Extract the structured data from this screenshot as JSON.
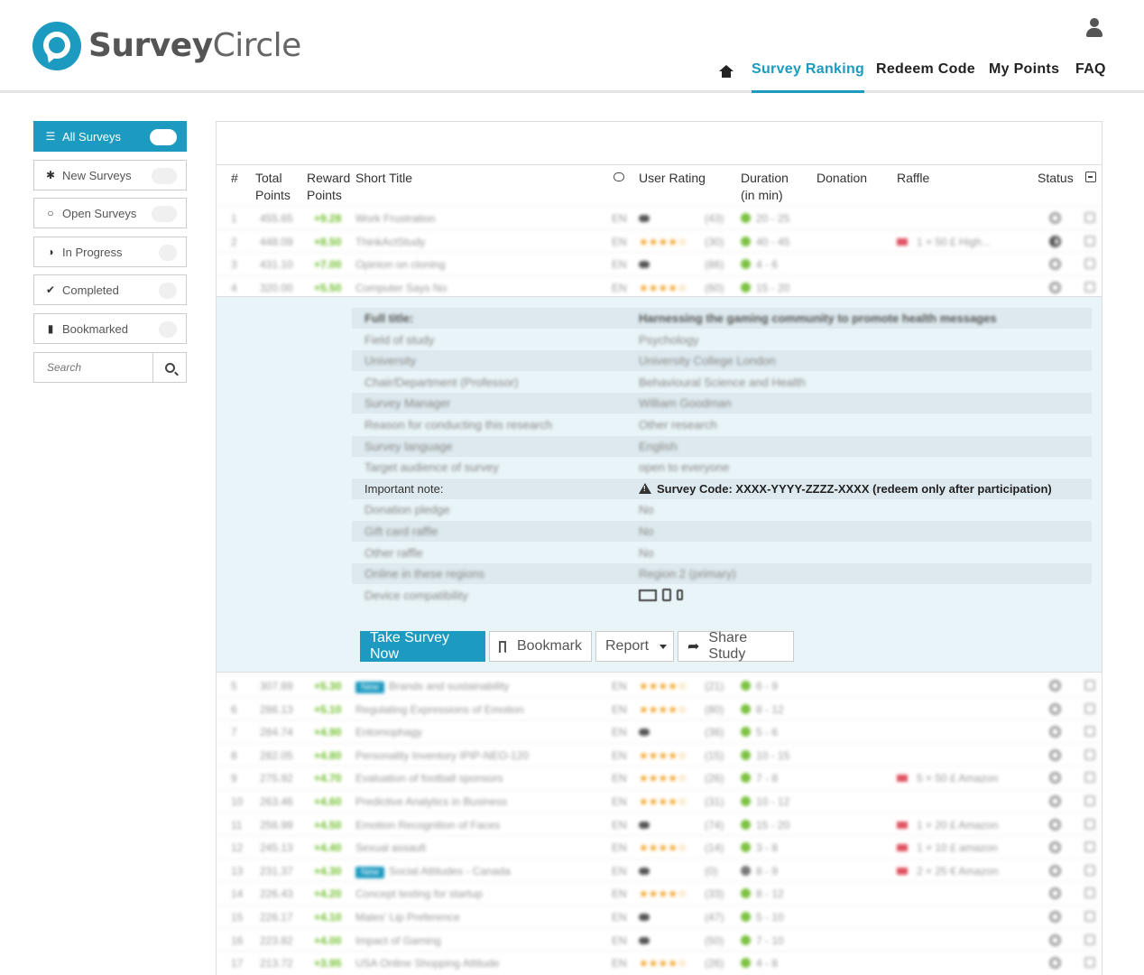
{
  "brand": {
    "name_bold": "Survey",
    "name_light": "Circle"
  },
  "nav": {
    "home_icon": "home-icon",
    "items": [
      "Survey Ranking",
      "Redeem Code",
      "My Points",
      "FAQ"
    ],
    "active": "Survey Ranking"
  },
  "sidebar": {
    "items": [
      {
        "icon": "list-icon",
        "label": "All Surveys"
      },
      {
        "icon": "asterisk-icon",
        "label": "New Surveys"
      },
      {
        "icon": "circle-icon",
        "label": "Open Surveys"
      },
      {
        "icon": "half-circle-icon",
        "label": "In Progress"
      },
      {
        "icon": "check-icon",
        "label": "Completed"
      },
      {
        "icon": "bookmark-icon",
        "label": "Bookmarked"
      }
    ],
    "search_placeholder": "Search"
  },
  "table": {
    "headers": {
      "num": "#",
      "total": "Total",
      "total2": "Points",
      "reward": "Reward",
      "reward2": "Points",
      "title": "Short Title",
      "rating": "User Rating",
      "duration": "Duration",
      "duration2": "(in min)",
      "donation": "Donation",
      "raffle": "Raffle",
      "status": "Status"
    },
    "rows_top": [
      {
        "n": "1",
        "total": "455.65",
        "reward": "+9.28",
        "title": "Work Frustration",
        "lang": "EN",
        "stars": "",
        "count": "(43)",
        "dur": "20 - 25",
        "raffle": "",
        "status": "open"
      },
      {
        "n": "2",
        "total": "448.09",
        "reward": "+8.50",
        "title": "ThinkActStudy",
        "lang": "EN",
        "stars": "★★★★☆",
        "count": "(30)",
        "dur": "40 - 45",
        "raffle": "1 × 50 £ High...",
        "status": "half"
      },
      {
        "n": "3",
        "total": "431.10",
        "reward": "+7.00",
        "title": "Opinion on cloning",
        "lang": "EN",
        "stars": "",
        "count": "(86)",
        "dur": "4 - 6",
        "raffle": "",
        "status": "open"
      },
      {
        "n": "4",
        "total": "320.00",
        "reward": "+5.50",
        "title": "Computer Says No",
        "lang": "EN",
        "stars": "★★★★☆",
        "count": "(60)",
        "dur": "15 - 20",
        "raffle": "",
        "status": "open"
      }
    ],
    "rows_bottom": [
      {
        "n": "5",
        "total": "307.89",
        "reward": "+5.30",
        "badge": "New",
        "title": "Brands and sustainability",
        "lang": "EN",
        "stars": "★★★★☆",
        "count": "(21)",
        "dur": "6 - 9",
        "raffle": ""
      },
      {
        "n": "6",
        "total": "286.13",
        "reward": "+5.10",
        "badge": "",
        "title": "Regulating Expressions of Emotion",
        "lang": "EN",
        "stars": "★★★★☆",
        "count": "(80)",
        "dur": "8 - 12",
        "raffle": ""
      },
      {
        "n": "7",
        "total": "284.74",
        "reward": "+4.90",
        "badge": "",
        "title": "Entomophagy",
        "lang": "EN",
        "stars": "",
        "count": "(36)",
        "dur": "5 - 6",
        "raffle": ""
      },
      {
        "n": "8",
        "total": "282.05",
        "reward": "+4.80",
        "badge": "",
        "title": "Personality Inventory IPIP-NEO-120",
        "lang": "EN",
        "stars": "★★★★☆",
        "count": "(15)",
        "dur": "10 - 15",
        "raffle": ""
      },
      {
        "n": "9",
        "total": "275.92",
        "reward": "+4.70",
        "badge": "",
        "title": "Evaluation of football sponsors",
        "lang": "EN",
        "stars": "★★★★☆",
        "count": "(26)",
        "dur": "7 - 8",
        "raffle": "5 × 50 £ Amazon"
      },
      {
        "n": "10",
        "total": "263.46",
        "reward": "+4.60",
        "badge": "",
        "title": "Predictive Analytics in Business",
        "lang": "EN",
        "stars": "★★★★☆",
        "count": "(31)",
        "dur": "10 - 12",
        "raffle": ""
      },
      {
        "n": "11",
        "total": "256.99",
        "reward": "+4.50",
        "badge": "",
        "title": "Emotion Recognition of Faces",
        "lang": "EN",
        "stars": "",
        "count": "(74)",
        "dur": "15 - 20",
        "raffle": "1 × 20 £ Amazon"
      },
      {
        "n": "12",
        "total": "245.13",
        "reward": "+4.40",
        "badge": "",
        "title": "Sexual assault",
        "lang": "EN",
        "stars": "★★★★☆",
        "count": "(14)",
        "dur": "3 - 8",
        "raffle": "1 × 10 £ amazon"
      },
      {
        "n": "13",
        "total": "231.37",
        "reward": "+4.30",
        "badge": "New",
        "title": "Social Attitudes - Canada",
        "lang": "EN",
        "stars": "",
        "count": "(0)",
        "dur": "8 - 9",
        "raffle": "2 × 25 € Amazon"
      },
      {
        "n": "14",
        "total": "226.43",
        "reward": "+4.20",
        "badge": "",
        "title": "Concept testing for startup",
        "lang": "EN",
        "stars": "★★★★☆",
        "count": "(33)",
        "dur": "8 - 12",
        "raffle": ""
      },
      {
        "n": "15",
        "total": "226.17",
        "reward": "+4.10",
        "badge": "",
        "title": "Males' Lip Preference",
        "lang": "EN",
        "stars": "",
        "count": "(47)",
        "dur": "5 - 10",
        "raffle": ""
      },
      {
        "n": "16",
        "total": "223.82",
        "reward": "+4.00",
        "badge": "",
        "title": "Impact of Gaming",
        "lang": "EN",
        "stars": "",
        "count": "(50)",
        "dur": "7 - 10",
        "raffle": ""
      },
      {
        "n": "17",
        "total": "213.72",
        "reward": "+3.95",
        "badge": "",
        "title": "USA Online Shopping Attitude",
        "lang": "EN",
        "stars": "★★★★☆",
        "count": "(26)",
        "dur": "4 - 8",
        "raffle": ""
      }
    ]
  },
  "detail": {
    "rows": [
      {
        "k": "Full title:",
        "v": "Harnessing the gaming community to promote health messages",
        "style": "bold"
      },
      {
        "k": "Field of study",
        "v": "Psychology"
      },
      {
        "k": "University",
        "v": "University College London"
      },
      {
        "k": "Chair/Department (Professor)",
        "v": "Behavioural Science and Health"
      },
      {
        "k": "Survey Manager",
        "v": "William Goodman"
      },
      {
        "k": "Reason for conducting this research",
        "v": "Other research"
      },
      {
        "k": "Survey language",
        "v": "English"
      },
      {
        "k": "Target audience of survey",
        "v": "open to everyone"
      },
      {
        "k": "Important note:",
        "v": "Survey Code: XXXX-YYYY-ZZZZ-XXXX (redeem only after participation)",
        "style": "note"
      },
      {
        "k": "Donation pledge",
        "v": "No"
      },
      {
        "k": "Gift card raffle",
        "v": "No"
      },
      {
        "k": "Other raffle",
        "v": "No"
      },
      {
        "k": "Online in these regions",
        "v": "Region 2 (primary)"
      },
      {
        "k": "Device compatibility",
        "v": "",
        "style": "devices"
      }
    ],
    "buttons": {
      "take": "Take Survey Now",
      "bookmark": "Bookmark",
      "report": "Report",
      "share": "Share Study"
    }
  }
}
